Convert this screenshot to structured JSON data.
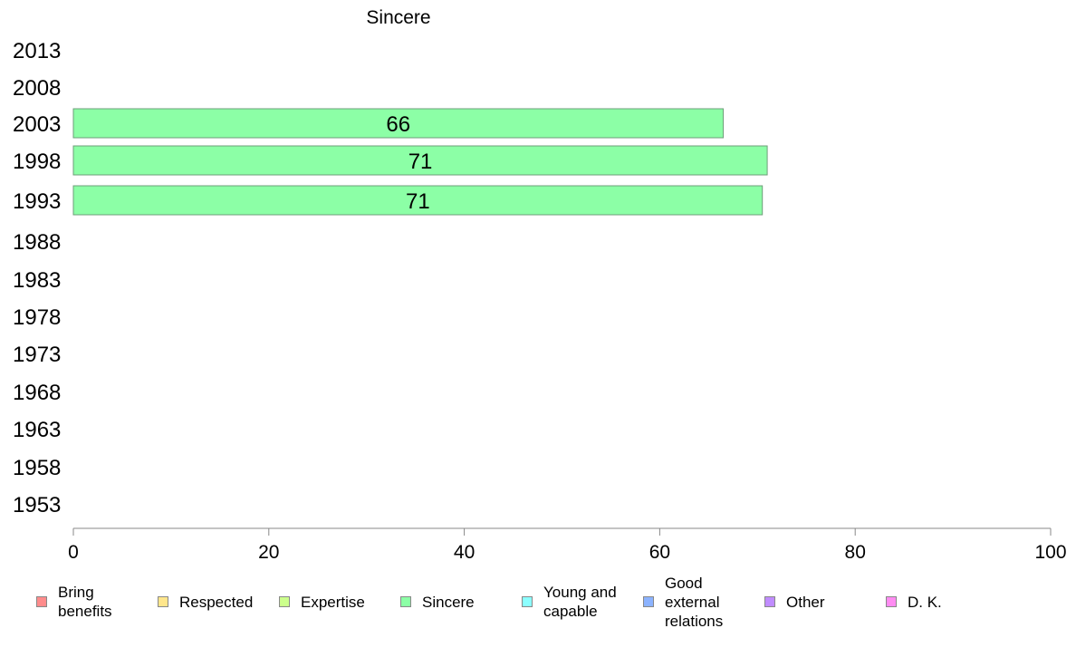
{
  "chart_data": {
    "type": "bar",
    "orientation": "horizontal",
    "title": "Sincere",
    "categories": [
      "2013",
      "2008",
      "2003",
      "1998",
      "1993",
      "1988",
      "1983",
      "1978",
      "1973",
      "1968",
      "1963",
      "1958",
      "1953"
    ],
    "series": [
      {
        "name": "Sincere",
        "color": "#8cffa6",
        "values": [
          null,
          null,
          66.5,
          71,
          70.5,
          null,
          null,
          null,
          null,
          null,
          null,
          null,
          null
        ]
      }
    ],
    "data_labels": [
      "",
      "",
      "66",
      "71",
      "71",
      "",
      "",
      "",
      "",
      "",
      "",
      "",
      ""
    ],
    "xlim": [
      0,
      100
    ],
    "xticks": [
      0,
      20,
      40,
      60,
      80,
      100
    ],
    "xlabel": "",
    "ylabel": "",
    "grid": false,
    "legend_position": "bottom"
  },
  "legend": [
    {
      "label": "Bring\nbenefits",
      "color": "#ff8c8c"
    },
    {
      "label": "Respected",
      "color": "#ffe68c"
    },
    {
      "label": "Expertise",
      "color": "#ccff8c"
    },
    {
      "label": "Sincere",
      "color": "#8cffa6"
    },
    {
      "label": "Young and\ncapable",
      "color": "#8cffff"
    },
    {
      "label": "Good\nexternal\nrelations",
      "color": "#8cb3ff"
    },
    {
      "label": "Other",
      "color": "#c08cff"
    },
    {
      "label": "D. K.",
      "color": "#ff8cf2"
    }
  ]
}
